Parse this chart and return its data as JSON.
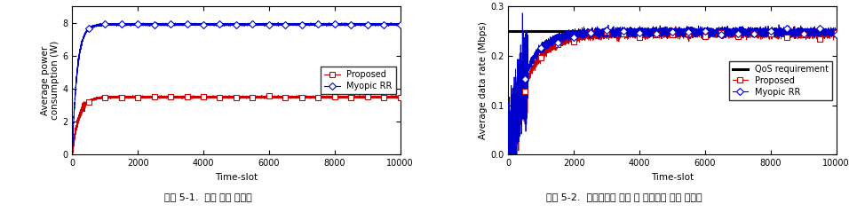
{
  "chart1": {
    "ylabel": "Average power\nconsumption (W)",
    "xlabel": "Time-slot",
    "xlim": [
      0,
      10000
    ],
    "ylim": [
      0,
      9
    ],
    "yticks": [
      0,
      2,
      4,
      6,
      8
    ],
    "xticks": [
      0,
      2000,
      4000,
      6000,
      8000,
      10000
    ],
    "proposed_color": "#cc0000",
    "myopic_color": "#0000cc",
    "proposed_steady": 3.5,
    "myopic_steady": 7.9,
    "caption1": "그림 5-1.  평균 전력 소모량"
  },
  "chart2": {
    "ylabel": "Average data rate (Mbps)",
    "xlabel": "Time-slot",
    "xlim": [
      0,
      10000
    ],
    "ylim": [
      0,
      0.3
    ],
    "yticks": [
      0,
      0.1,
      0.2,
      0.3
    ],
    "xticks": [
      0,
      2000,
      4000,
      6000,
      8000,
      10000
    ],
    "qos_level": 0.25,
    "proposed_color": "#cc0000",
    "myopic_color": "#0000cc",
    "qos_color": "#000000",
    "caption2": "그림 5-2.  기지국에서 가장 먼 사용자의 평균 전송률"
  }
}
